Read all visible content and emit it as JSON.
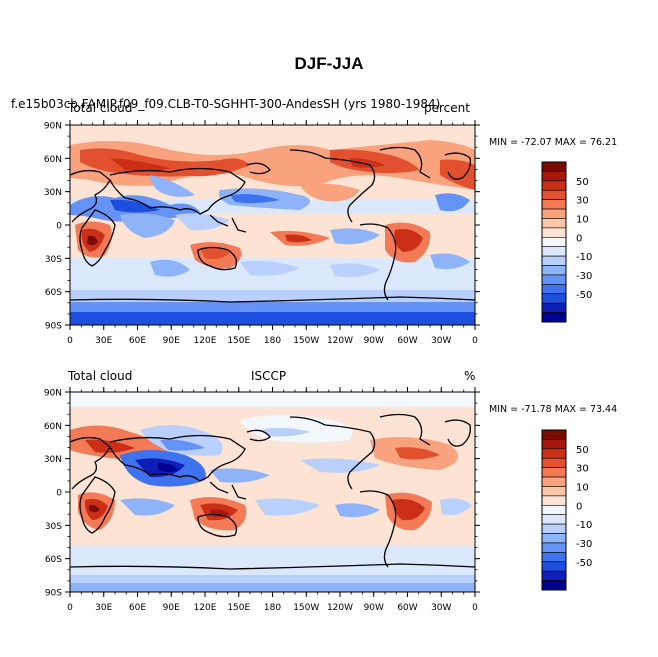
{
  "figure": {
    "title": "DJF-JJA"
  },
  "panels": [
    {
      "left_label": "Total cloud",
      "case_label": "f.e15b03cb.FAMIP.f09_f09.CLB-T0-SGHHT-300-AndesSH (yrs 1980-1984)",
      "right_label": "percent",
      "min_max": "MIN = -72.07 MAX =  76.21"
    },
    {
      "left_label": "Total cloud",
      "case_label": "ISCCP",
      "right_label": "%",
      "min_max": "MIN = -71.78 MAX =  73.44"
    }
  ],
  "axes": {
    "lon_ticks": [
      "0",
      "30E",
      "60E",
      "90E",
      "120E",
      "150E",
      "180",
      "150W",
      "120W",
      "90W",
      "60W",
      "30W",
      "0"
    ],
    "lat_ticks": [
      "90N",
      "60N",
      "30N",
      "0",
      "30S",
      "60S",
      "90S"
    ]
  },
  "colorbar": {
    "levels": [
      -70,
      -60,
      -50,
      -40,
      -30,
      -20,
      -10,
      -5,
      0,
      5,
      10,
      20,
      30,
      40,
      50,
      60,
      70
    ],
    "labels": [
      "50",
      "30",
      "10",
      "0",
      "-10",
      "-30",
      "-50"
    ],
    "colors": [
      "#00008f",
      "#0d1fb8",
      "#1f4fe0",
      "#3f72ef",
      "#6592f5",
      "#8eb3f8",
      "#b8d0fb",
      "#dbe8fc",
      "#f2f6fd",
      "#fde3d3",
      "#fcc6a8",
      "#f9a27e",
      "#f27a57",
      "#e3502f",
      "#cc2f17",
      "#a8170b",
      "#7a0a04"
    ]
  }
}
